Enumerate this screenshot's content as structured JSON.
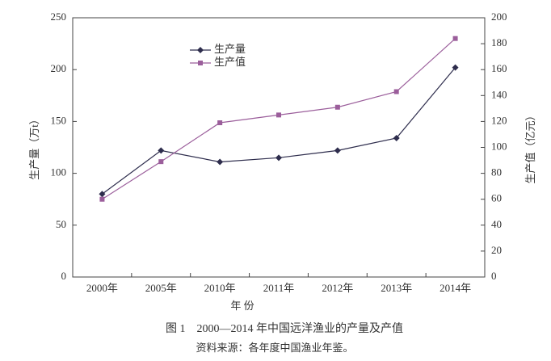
{
  "chart_data": {
    "type": "line",
    "categories": [
      "2000年",
      "2005年",
      "2010年",
      "2011年",
      "2012年",
      "2013年",
      "2014年"
    ],
    "series": [
      {
        "name": "生产量",
        "color": "#2e2d4d",
        "marker": "diamond",
        "axis": "y",
        "values": [
          80,
          122,
          111,
          115,
          122,
          134,
          202
        ]
      },
      {
        "name": "生产值",
        "color": "#9b5e9b",
        "marker": "square",
        "axis": "y2",
        "values": [
          60,
          89,
          119,
          125,
          131,
          143,
          184
        ]
      }
    ],
    "ylim": [
      0,
      250
    ],
    "yticks": [
      0,
      50,
      100,
      150,
      200,
      250
    ],
    "y2lim": [
      0,
      200
    ],
    "y2ticks": [
      0,
      20,
      40,
      60,
      80,
      100,
      120,
      140,
      160,
      180,
      200
    ],
    "ylabel": "生产量（万t）",
    "y2label": "生产值（亿元）",
    "xlabel": "年 份",
    "caption": "图 1　2000—2014 年中国远洋渔业的产量及产值",
    "source": "资料来源：各年度中国渔业年鉴。",
    "legend": "upper-left"
  }
}
